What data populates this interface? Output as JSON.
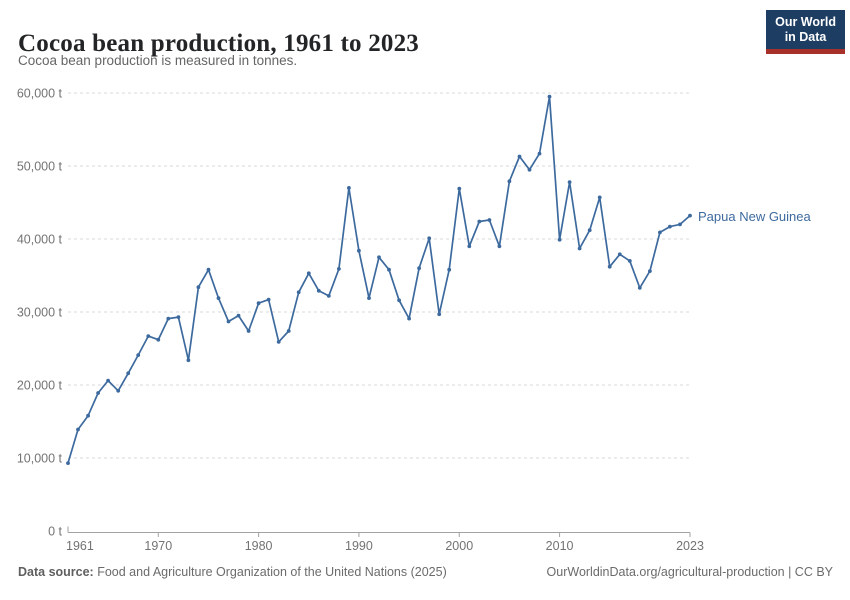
{
  "header": {
    "title": "Cocoa bean production, 1961 to 2023",
    "subtitle": "Cocoa bean production is measured in tonnes."
  },
  "logo": {
    "line1": "Our World",
    "line2": "in Data",
    "bg_color": "#1d3d63",
    "accent_color": "#a8302a"
  },
  "chart_data": {
    "type": "line",
    "title": "Cocoa bean production, 1961 to 2023",
    "ylabel": "",
    "xlabel": "",
    "unit": "t",
    "x_range": [
      1961,
      2023
    ],
    "y_range": [
      0,
      60000
    ],
    "grid": "dashed-horizontal",
    "legend_position": "end-of-line-label",
    "yticks": [
      {
        "value": 0,
        "label": "0 t"
      },
      {
        "value": 10000,
        "label": "10,000 t"
      },
      {
        "value": 20000,
        "label": "20,000 t"
      },
      {
        "value": 30000,
        "label": "30,000 t"
      },
      {
        "value": 40000,
        "label": "40,000 t"
      },
      {
        "value": 50000,
        "label": "50,000 t"
      },
      {
        "value": 60000,
        "label": "60,000 t"
      }
    ],
    "xticks": [
      {
        "value": 1961,
        "label": "1961"
      },
      {
        "value": 1970,
        "label": "1970"
      },
      {
        "value": 1980,
        "label": "1980"
      },
      {
        "value": 1990,
        "label": "1990"
      },
      {
        "value": 2000,
        "label": "2000"
      },
      {
        "value": 2010,
        "label": "2010"
      },
      {
        "value": 2023,
        "label": "2023"
      }
    ],
    "x": [
      1961,
      1962,
      1963,
      1964,
      1965,
      1966,
      1967,
      1968,
      1969,
      1970,
      1971,
      1972,
      1973,
      1974,
      1975,
      1976,
      1977,
      1978,
      1979,
      1980,
      1981,
      1982,
      1983,
      1984,
      1985,
      1986,
      1987,
      1988,
      1989,
      1990,
      1991,
      1992,
      1993,
      1994,
      1995,
      1996,
      1997,
      1998,
      1999,
      2000,
      2001,
      2002,
      2003,
      2004,
      2005,
      2006,
      2007,
      2008,
      2009,
      2010,
      2011,
      2012,
      2013,
      2014,
      2015,
      2016,
      2017,
      2018,
      2019,
      2020,
      2021,
      2022,
      2023
    ],
    "series": [
      {
        "name": "Papua New Guinea",
        "color": "#3d6a9e",
        "values": [
          9300,
          13900,
          15800,
          18900,
          20600,
          19200,
          21600,
          24100,
          26700,
          26200,
          29100,
          29300,
          23400,
          33400,
          35800,
          31900,
          28700,
          29500,
          27400,
          31200,
          31700,
          25900,
          27400,
          32700,
          35300,
          32900,
          32200,
          35900,
          47000,
          38400,
          31900,
          37500,
          35800,
          31600,
          29100,
          36000,
          40100,
          29700,
          35800,
          46900,
          39000,
          42400,
          42600,
          39000,
          47900,
          51300,
          49500,
          51700,
          59500,
          39900,
          47800,
          38700,
          41200,
          45700,
          36200,
          37900,
          37000,
          33300,
          35600,
          40900,
          41700,
          42000,
          43200
        ]
      }
    ],
    "style": {
      "axis_color": "#a2a2a2",
      "grid_color": "#dadada",
      "tick_label_color": "#737373"
    }
  },
  "footer": {
    "source_label": "Data source:",
    "source_text": "Food and Agriculture Organization of the United Nations (2025)",
    "link_text": "OurWorldinData.org/agricultural-production | CC BY"
  }
}
